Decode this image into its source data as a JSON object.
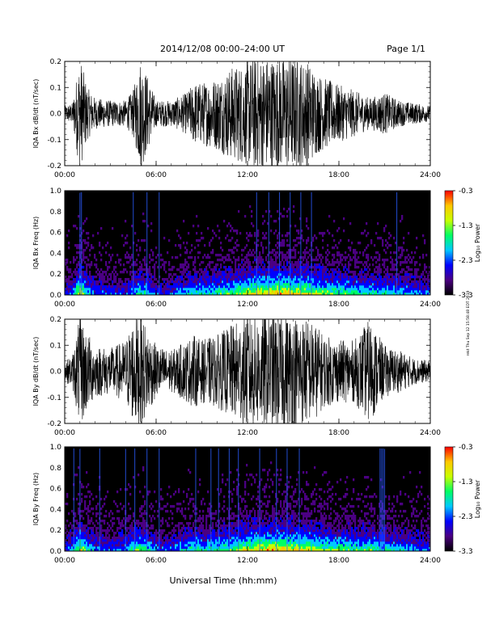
{
  "header": {
    "date_range": "2014/12/08   00:00–24:00 UT",
    "page": "Page 1/1"
  },
  "footer": {
    "xlabel": "Universal Time (hh:mm)"
  },
  "side_note": "rekt Thu Sep 12 15:58:48 EDT 2019",
  "colors": {
    "background": "#ffffff",
    "axes": "#000000",
    "waveform": "#000000",
    "spectrogram_background": "#000000",
    "colormap": [
      "#000000",
      "#4b0082",
      "#0000ff",
      "#00c8ff",
      "#00ff64",
      "#c8ff00",
      "#ffc800",
      "#ff0000"
    ]
  },
  "chart_data": [
    {
      "type": "line",
      "ylabel": "IQA Bx dB/dt (nT/sec)",
      "x_ticks": [
        "00:00",
        "06:00",
        "12:00",
        "18:00",
        "24:00"
      ],
      "y_ticks": [
        "0.2",
        "0.1",
        "0.0",
        "-0.1",
        "-0.2"
      ],
      "xlim": [
        0,
        24
      ],
      "ylim": [
        -0.2,
        0.2
      ],
      "x_unit": "hours UT",
      "envelope": {
        "x": [
          0,
          0.5,
          1,
          1.5,
          2,
          3,
          4,
          4.5,
          5,
          6,
          7,
          8,
          8.5,
          9,
          10,
          11,
          12,
          12.5,
          13,
          14,
          15,
          16,
          16.5,
          17,
          18,
          19,
          20,
          21,
          22,
          23,
          24
        ],
        "amplitude": [
          0.03,
          0.04,
          0.22,
          0.1,
          0.06,
          0.05,
          0.05,
          0.09,
          0.22,
          0.05,
          0.05,
          0.08,
          0.12,
          0.12,
          0.14,
          0.18,
          0.2,
          0.22,
          0.22,
          0.22,
          0.22,
          0.2,
          0.16,
          0.14,
          0.11,
          0.09,
          0.06,
          0.08,
          0.05,
          0.04,
          0.03
        ]
      }
    },
    {
      "type": "heatmap",
      "ylabel": "IQA Bx Freq (Hz)",
      "x_ticks": [
        "00:00",
        "06:00",
        "12:00",
        "18:00",
        "24:00"
      ],
      "y_ticks": [
        "1.0",
        "0.8",
        "0.6",
        "0.4",
        "0.2",
        "0.0"
      ],
      "xlim": [
        0,
        24
      ],
      "ylim": [
        0,
        1.0
      ],
      "colorbar": {
        "label": "Log₁₀ Power",
        "ticks": [
          "-0.3",
          "-1.3",
          "-2.3",
          "-3.3"
        ],
        "range": [
          -3.3,
          -0.3
        ]
      },
      "activity": {
        "x": [
          0,
          0.5,
          1,
          1.5,
          2,
          3,
          4,
          4.5,
          5,
          6,
          7,
          8,
          8.5,
          9,
          10,
          11,
          12,
          12.5,
          13,
          14,
          15,
          16,
          16.5,
          17,
          18,
          19,
          20,
          21,
          22,
          23,
          24
        ],
        "level": [
          0.3,
          0.35,
          0.8,
          0.45,
          0.35,
          0.3,
          0.3,
          0.4,
          0.6,
          0.3,
          0.3,
          0.45,
          0.5,
          0.5,
          0.55,
          0.6,
          0.75,
          0.8,
          0.8,
          0.85,
          0.8,
          0.75,
          0.7,
          0.65,
          0.6,
          0.55,
          0.5,
          0.5,
          0.45,
          0.4,
          0.35
        ]
      },
      "spikes_hours": [
        1.0,
        1.1,
        4.5,
        5.4,
        6.2,
        12.6,
        13.4,
        14.1,
        14.8,
        15.5,
        16.2,
        21.8
      ]
    },
    {
      "type": "line",
      "ylabel": "IQA By dB/dt (nT/sec)",
      "x_ticks": [
        "00:00",
        "06:00",
        "12:00",
        "18:00",
        "24:00"
      ],
      "y_ticks": [
        "0.2",
        "0.1",
        "0.0",
        "-0.1",
        "-0.2"
      ],
      "xlim": [
        0,
        24
      ],
      "ylim": [
        -0.2,
        0.2
      ],
      "x_unit": "hours UT",
      "envelope": {
        "x": [
          0,
          0.5,
          1,
          1.5,
          2,
          3,
          4,
          4.5,
          5,
          6,
          7,
          8,
          8.5,
          9,
          10,
          11,
          12,
          12.5,
          13,
          14,
          15,
          16,
          16.5,
          17,
          18,
          19,
          20,
          21,
          22,
          23,
          24
        ],
        "amplitude": [
          0.04,
          0.06,
          0.22,
          0.15,
          0.1,
          0.09,
          0.12,
          0.2,
          0.22,
          0.1,
          0.08,
          0.12,
          0.14,
          0.12,
          0.14,
          0.18,
          0.22,
          0.22,
          0.22,
          0.22,
          0.22,
          0.2,
          0.18,
          0.14,
          0.12,
          0.12,
          0.2,
          0.1,
          0.08,
          0.05,
          0.04
        ]
      }
    },
    {
      "type": "heatmap",
      "ylabel": "IQA By Freq (Hz)",
      "x_ticks": [
        "00:00",
        "06:00",
        "12:00",
        "18:00",
        "24:00"
      ],
      "y_ticks": [
        "1.0",
        "0.8",
        "0.6",
        "0.4",
        "0.2",
        "0.0"
      ],
      "xlim": [
        0,
        24
      ],
      "ylim": [
        0,
        1.0
      ],
      "colorbar": {
        "label": "Log₁₀ Power",
        "ticks": [
          "-0.3",
          "-1.3",
          "-2.3",
          "-3.3"
        ],
        "range": [
          -3.3,
          -0.3
        ]
      },
      "activity": {
        "x": [
          0,
          0.5,
          1,
          1.5,
          2,
          3,
          4,
          4.5,
          5,
          6,
          7,
          8,
          8.5,
          9,
          10,
          11,
          12,
          12.5,
          13,
          14,
          15,
          16,
          16.5,
          17,
          18,
          19,
          20,
          21,
          22,
          23,
          24
        ],
        "level": [
          0.3,
          0.4,
          0.8,
          0.5,
          0.4,
          0.35,
          0.4,
          0.55,
          0.65,
          0.35,
          0.35,
          0.5,
          0.55,
          0.5,
          0.55,
          0.6,
          0.75,
          0.8,
          0.8,
          0.85,
          0.8,
          0.75,
          0.7,
          0.65,
          0.6,
          0.55,
          0.6,
          0.5,
          0.45,
          0.4,
          0.35
        ]
      },
      "spikes_hours": [
        0.6,
        1.0,
        2.3,
        4.0,
        4.6,
        5.4,
        6.2,
        8.6,
        9.6,
        10.1,
        10.8,
        11.4,
        12.8,
        13.9,
        14.6,
        15.4,
        20.7,
        20.8,
        20.9,
        21.0
      ]
    }
  ]
}
